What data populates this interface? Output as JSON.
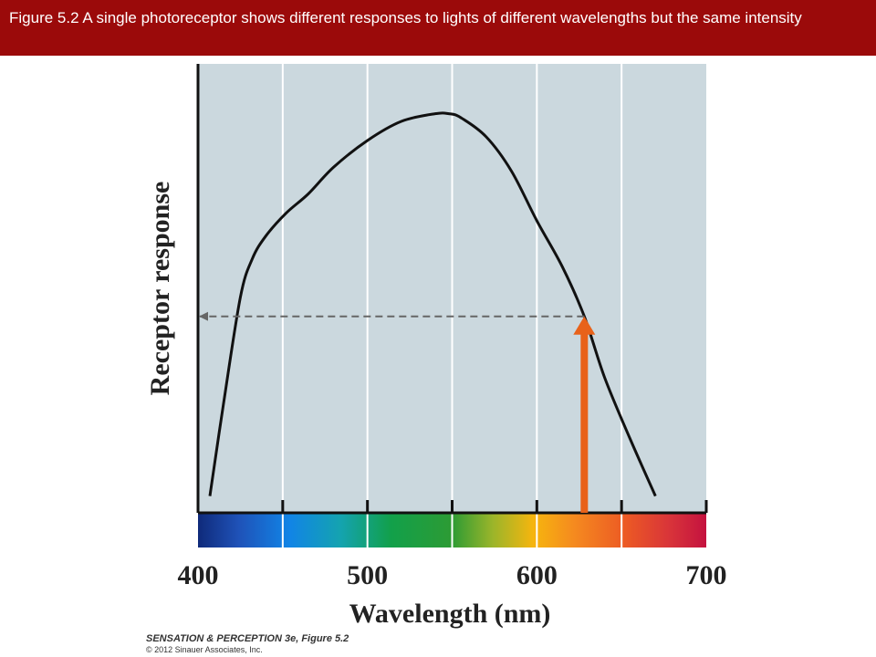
{
  "title_bar": {
    "text": "Figure 5.2  A single photoreceptor shows different responses to lights of different wavelengths but the same intensity"
  },
  "chart_data": {
    "type": "line",
    "title": "",
    "xlabel": "Wavelength (nm)",
    "ylabel": "Receptor response",
    "xlim": [
      400,
      700
    ],
    "ylim": [
      0,
      1
    ],
    "x_ticks": [
      400,
      450,
      500,
      550,
      600,
      650,
      700
    ],
    "x_tick_labels": [
      "400",
      "500",
      "600",
      "700"
    ],
    "x_tick_label_values": [
      400,
      500,
      600,
      700
    ],
    "grid": true,
    "series": [
      {
        "x": [
          407,
          415,
          425,
          432,
          440,
          452,
          465,
          480,
          500,
          520,
          540,
          548,
          555,
          570,
          585,
          600,
          615,
          628,
          640,
          655,
          670
        ],
        "y": [
          0.02,
          0.26,
          0.54,
          0.64,
          0.7,
          0.76,
          0.81,
          0.88,
          0.95,
          1.0,
          1.02,
          1.02,
          1.01,
          0.96,
          0.87,
          0.74,
          0.62,
          0.49,
          0.33,
          0.17,
          0.02
        ],
        "color": "#111111"
      }
    ],
    "annotations": [
      {
        "type": "vertical-arrow",
        "x": 628,
        "y_from": 0,
        "y_to": 0.49,
        "color": "#e8621a"
      },
      {
        "type": "dashed-arrow",
        "from_x": 628,
        "to_x": 400,
        "y": 0.49,
        "color": "#666666"
      }
    ],
    "colors": {
      "plot_background": "#cbd8de",
      "grid": "#ffffff",
      "axis": "#111111"
    }
  },
  "credit": {
    "line1": "SENSATION & PERCEPTION 3e, Figure 5.2",
    "line2": "© 2012 Sinauer Associates, Inc."
  }
}
